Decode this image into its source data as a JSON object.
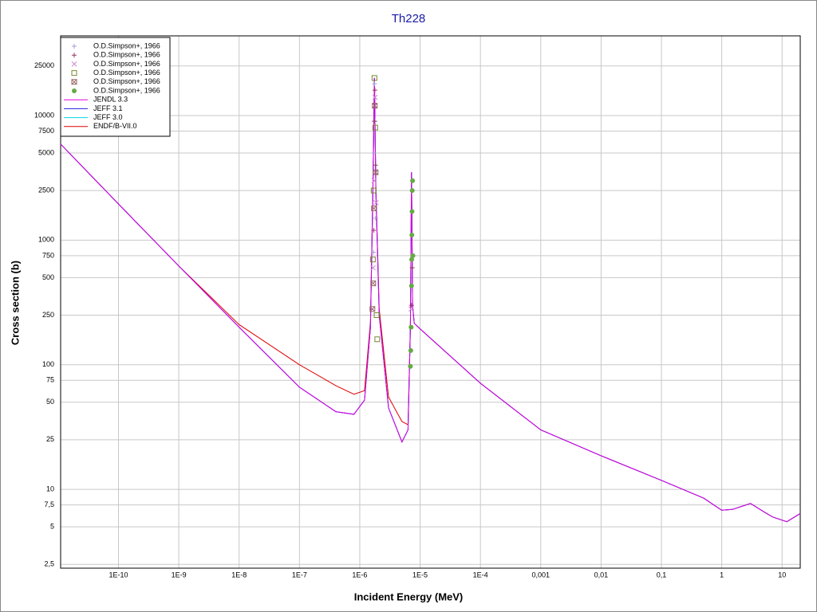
{
  "chart_data": {
    "type": "line",
    "title": "Th228",
    "x_label": "Incident Energy (MeV)",
    "y_label": "Cross section (b)",
    "xscale": "log",
    "yscale": "log",
    "grid": true,
    "legend": "upper left",
    "xlim": [
      1.1e-11,
      20
    ],
    "ylim": [
      2.33,
      43600
    ],
    "xticks": [
      {
        "value": 1e-10,
        "label": "1E-10"
      },
      {
        "value": 1e-09,
        "label": "1E-9"
      },
      {
        "value": 1e-08,
        "label": "1E-8"
      },
      {
        "value": 1e-07,
        "label": "1E-7"
      },
      {
        "value": 1e-06,
        "label": "1E-6"
      },
      {
        "value": 1e-05,
        "label": "1E-5"
      },
      {
        "value": 0.0001,
        "label": "1E-4"
      },
      {
        "value": 0.001,
        "label": "0,001"
      },
      {
        "value": 0.01,
        "label": "0,01"
      },
      {
        "value": 0.1,
        "label": "0,1"
      },
      1,
      10
    ],
    "yticks": [
      {
        "value": 2.5,
        "label": "2,5"
      },
      5,
      {
        "value": 7.5,
        "label": "7,5"
      },
      10,
      25,
      50,
      75,
      100,
      250,
      500,
      750,
      1000,
      2500,
      5000,
      7500,
      10000,
      25000
    ],
    "scatter_series": [
      {
        "name": "O.D.Simpson+, 1966",
        "marker": "plus",
        "color": "#a0a0d0",
        "x": [
          1.68e-06,
          1.72e-06,
          1.76e-06,
          1.8e-06,
          1.84e-06
        ],
        "values": [
          800,
          5000,
          18000,
          9000,
          1500
        ]
      },
      {
        "name": "O.D.Simpson+, 1966",
        "marker": "plus",
        "color": "#993366",
        "x": [
          1.7e-06,
          1.74e-06,
          1.78e-06,
          1.82e-06,
          7.2e-06,
          7.4e-06
        ],
        "values": [
          1200,
          9000,
          16000,
          4000,
          300,
          600
        ]
      },
      {
        "name": "O.D.Simpson+, 1966",
        "marker": "cross",
        "color": "#cc88cc",
        "x": [
          1.66e-06,
          1.73e-06,
          1.79e-06,
          1.86e-06,
          7.1e-06
        ],
        "values": [
          600,
          3000,
          14000,
          2000,
          280
        ]
      },
      {
        "name": "O.D.Simpson+, 1966",
        "marker": "square",
        "color": "#778833",
        "x": [
          1.65e-06,
          1.7e-06,
          1.75e-06,
          1.8e-06,
          1.9e-06,
          1.95e-06
        ],
        "values": [
          700,
          2500,
          20000,
          8000,
          250,
          160
        ]
      },
      {
        "name": "O.D.Simpson+, 1966",
        "marker": "square-x",
        "color": "#996666",
        "x": [
          1.62e-06,
          1.67e-06,
          1.72e-06,
          1.77e-06,
          1.83e-06
        ],
        "values": [
          280,
          450,
          1800,
          12000,
          3500
        ]
      },
      {
        "name": "O.D.Simpson+, 1966",
        "marker": "circle",
        "color": "#66aa44",
        "x": [
          6.9e-06,
          7e-06,
          7.1e-06,
          7.2e-06,
          7.25e-06,
          7.3e-06,
          7.35e-06,
          7.4e-06,
          7.5e-06,
          7.6e-06
        ],
        "values": [
          97,
          130,
          200,
          430,
          700,
          1100,
          1700,
          2500,
          3000,
          750
        ]
      }
    ],
    "x": [
      1.1e-11,
      1e-10,
      1e-09,
      1e-08,
      1e-07,
      4e-07,
      8e-07,
      1.2e-06,
      1.5e-06,
      1.65e-06,
      1.75e-06,
      1.85e-06,
      2.1e-06,
      3e-06,
      5e-06,
      6.3e-06,
      6.9e-06,
      7.2e-06,
      7.5e-06,
      8e-06,
      1e-05,
      0.0001,
      0.001,
      0.01,
      0.1,
      0.5,
      1,
      1.5,
      3,
      5,
      7,
      12,
      20
    ],
    "series": [
      {
        "name": "JENDL 3.3",
        "color": "#e000e0",
        "values": [
          5900,
          1950,
          620,
          200,
          66,
          42,
          40,
          52,
          200,
          2500,
          20000,
          2500,
          250,
          45,
          24,
          30,
          200,
          3500,
          300,
          215,
          194,
          71,
          30,
          18.6,
          11.8,
          8.5,
          6.8,
          6.9,
          7.7,
          6.6,
          6.0,
          5.5,
          6.4
        ]
      },
      {
        "name": "JEFF 3.1",
        "color": "#2020e0",
        "values": [
          5900,
          1950,
          620,
          200,
          66,
          42,
          40,
          52,
          200,
          2500,
          20000,
          2500,
          250,
          45,
          24,
          30,
          200,
          3500,
          300,
          215,
          194,
          71,
          30,
          18.6,
          11.8,
          8.5,
          6.8,
          6.9,
          7.7,
          6.6,
          6.0,
          5.5,
          6.4
        ]
      },
      {
        "name": "JEFF 3.0",
        "color": "#00d8e8",
        "values": [
          5900,
          1950,
          620,
          200,
          66,
          42,
          40,
          52,
          200,
          2500,
          20000,
          2500,
          250,
          45,
          24,
          30,
          200,
          3500,
          300,
          215,
          194,
          71,
          30,
          18.6,
          11.8,
          8.5,
          6.8,
          6.9,
          7.7,
          6.6,
          6.0,
          5.5,
          6.4
        ]
      },
      {
        "name": "ENDF/B-VII.0",
        "color": "#e00000",
        "values": [
          5900,
          1950,
          620,
          210,
          100,
          68,
          58,
          62,
          220,
          2600,
          20000,
          2600,
          280,
          55,
          35,
          33,
          210,
          3500,
          300,
          215,
          194,
          71,
          30,
          18.6,
          11.8,
          8.5,
          6.8,
          6.9,
          7.7,
          6.6,
          6.0,
          5.5,
          6.4
        ]
      }
    ]
  }
}
